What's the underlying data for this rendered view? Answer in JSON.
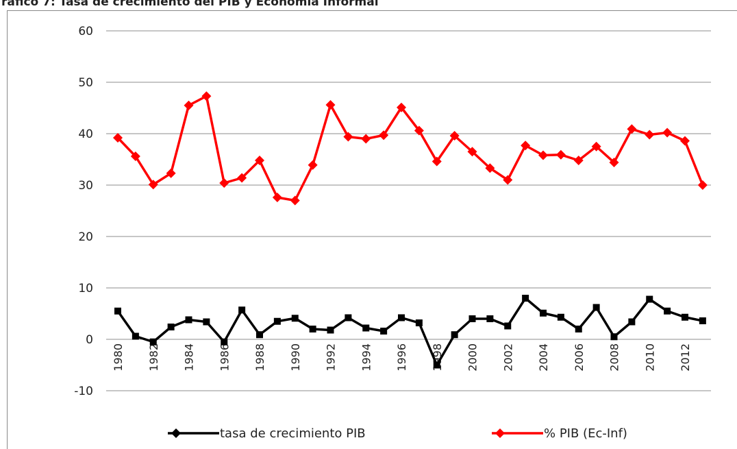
{
  "chart_data": {
    "type": "line",
    "title": "ráfico 7: Tasa de crecimiento del PIB y Economía Informal",
    "categories": [
      "1980",
      null,
      "1982",
      null,
      "1984",
      null,
      "1986",
      null,
      "1988",
      null,
      "1990",
      null,
      "1992",
      null,
      "1994",
      null,
      "1996",
      null,
      "1998",
      null,
      "2000",
      null,
      "2002",
      null,
      "2004",
      null,
      "2006",
      null,
      "2008",
      null,
      "2010",
      null,
      "2012",
      null
    ],
    "series": [
      {
        "name": "tasa de crecimiento PIB",
        "color": "#000000",
        "marker": "square",
        "values": [
          5.5,
          0.6,
          -0.5,
          2.4,
          3.8,
          3.4,
          -0.5,
          5.7,
          0.9,
          3.5,
          4.1,
          2.0,
          1.8,
          4.2,
          2.2,
          1.6,
          4.2,
          3.2,
          -5.0,
          0.9,
          4.0,
          4.0,
          2.6,
          8.0,
          5.1,
          4.3,
          2.0,
          6.2,
          0.5,
          3.4,
          7.8,
          5.5,
          4.3,
          3.6
        ]
      },
      {
        "name": "% PIB (Ec-Inf)",
        "color": "#ff0000",
        "marker": "diamond",
        "values": [
          39.2,
          35.6,
          30.1,
          32.3,
          45.5,
          47.3,
          30.4,
          31.4,
          34.8,
          27.6,
          27.0,
          33.9,
          45.6,
          39.4,
          39.0,
          39.7,
          45.1,
          40.6,
          34.6,
          39.6,
          36.5,
          33.3,
          31.0,
          37.7,
          35.8,
          35.9,
          34.8,
          37.5,
          34.4,
          40.9,
          39.8,
          40.2,
          38.6,
          30.0
        ]
      }
    ],
    "ylim": [
      -10,
      60
    ],
    "yticks": [
      -10,
      0,
      10,
      20,
      30,
      40,
      50,
      60
    ],
    "grid": true,
    "legend": "bottom"
  }
}
